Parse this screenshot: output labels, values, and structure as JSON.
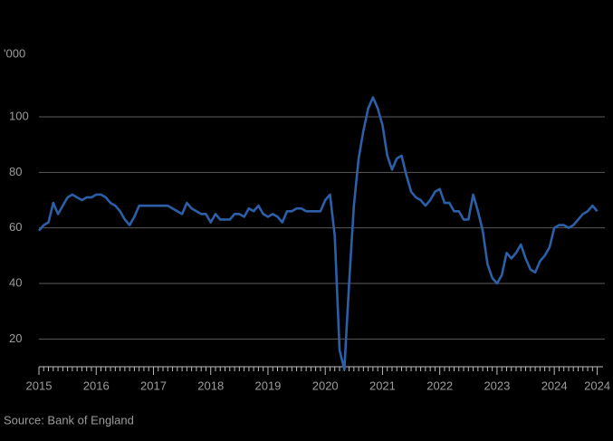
{
  "chart_data": {
    "type": "line",
    "y_unit_label": "'000",
    "source": "Source: Bank of England",
    "categories": [
      "2015",
      null,
      null,
      null,
      null,
      null,
      null,
      null,
      null,
      null,
      null,
      null,
      "2016",
      null,
      null,
      null,
      null,
      null,
      null,
      null,
      null,
      null,
      null,
      null,
      "2017",
      null,
      null,
      null,
      null,
      null,
      null,
      null,
      null,
      null,
      null,
      null,
      "2018",
      null,
      null,
      null,
      null,
      null,
      null,
      null,
      null,
      null,
      null,
      null,
      "2019",
      null,
      null,
      null,
      null,
      null,
      null,
      null,
      null,
      null,
      null,
      null,
      "2020",
      null,
      null,
      null,
      null,
      null,
      null,
      null,
      null,
      null,
      null,
      null,
      "2021",
      null,
      null,
      null,
      null,
      null,
      null,
      null,
      null,
      null,
      null,
      null,
      "2022",
      null,
      null,
      null,
      null,
      null,
      null,
      null,
      null,
      null,
      null,
      null,
      "2023",
      null,
      null,
      null,
      null,
      null,
      null,
      null,
      null,
      null,
      null,
      null,
      "2024",
      null,
      null,
      null,
      null,
      null,
      null,
      null,
      null,
      "2024"
    ],
    "series": [
      {
        "color": "#2c5fa8",
        "values": [
          59,
          61,
          62,
          69,
          65,
          68,
          71,
          72,
          71,
          70,
          71,
          71,
          72,
          72,
          71,
          69,
          68,
          66,
          63,
          61,
          64,
          68,
          68,
          68,
          68,
          68,
          68,
          68,
          67,
          66,
          65,
          69,
          67,
          66,
          65,
          65,
          62,
          65,
          63,
          63,
          63,
          65,
          65,
          64,
          67,
          66,
          68,
          65,
          64,
          65,
          64,
          62,
          66,
          66,
          67,
          67,
          66,
          66,
          66,
          66,
          70,
          72,
          57,
          16,
          9,
          40,
          68,
          85,
          95,
          103,
          107,
          103,
          97,
          86,
          81,
          85,
          86,
          79,
          73,
          71,
          70,
          68,
          70,
          73,
          74,
          69,
          69,
          66,
          66,
          63,
          63,
          72,
          66,
          59,
          47,
          42,
          40,
          43,
          51,
          49,
          51,
          54,
          49,
          45,
          44,
          48,
          50,
          53,
          60,
          61,
          61,
          60,
          61,
          63,
          65,
          66,
          68,
          66
        ]
      }
    ],
    "ylim": [
      10,
      120
    ],
    "yticks": [
      20,
      40,
      60,
      80,
      100
    ],
    "grid": true
  }
}
